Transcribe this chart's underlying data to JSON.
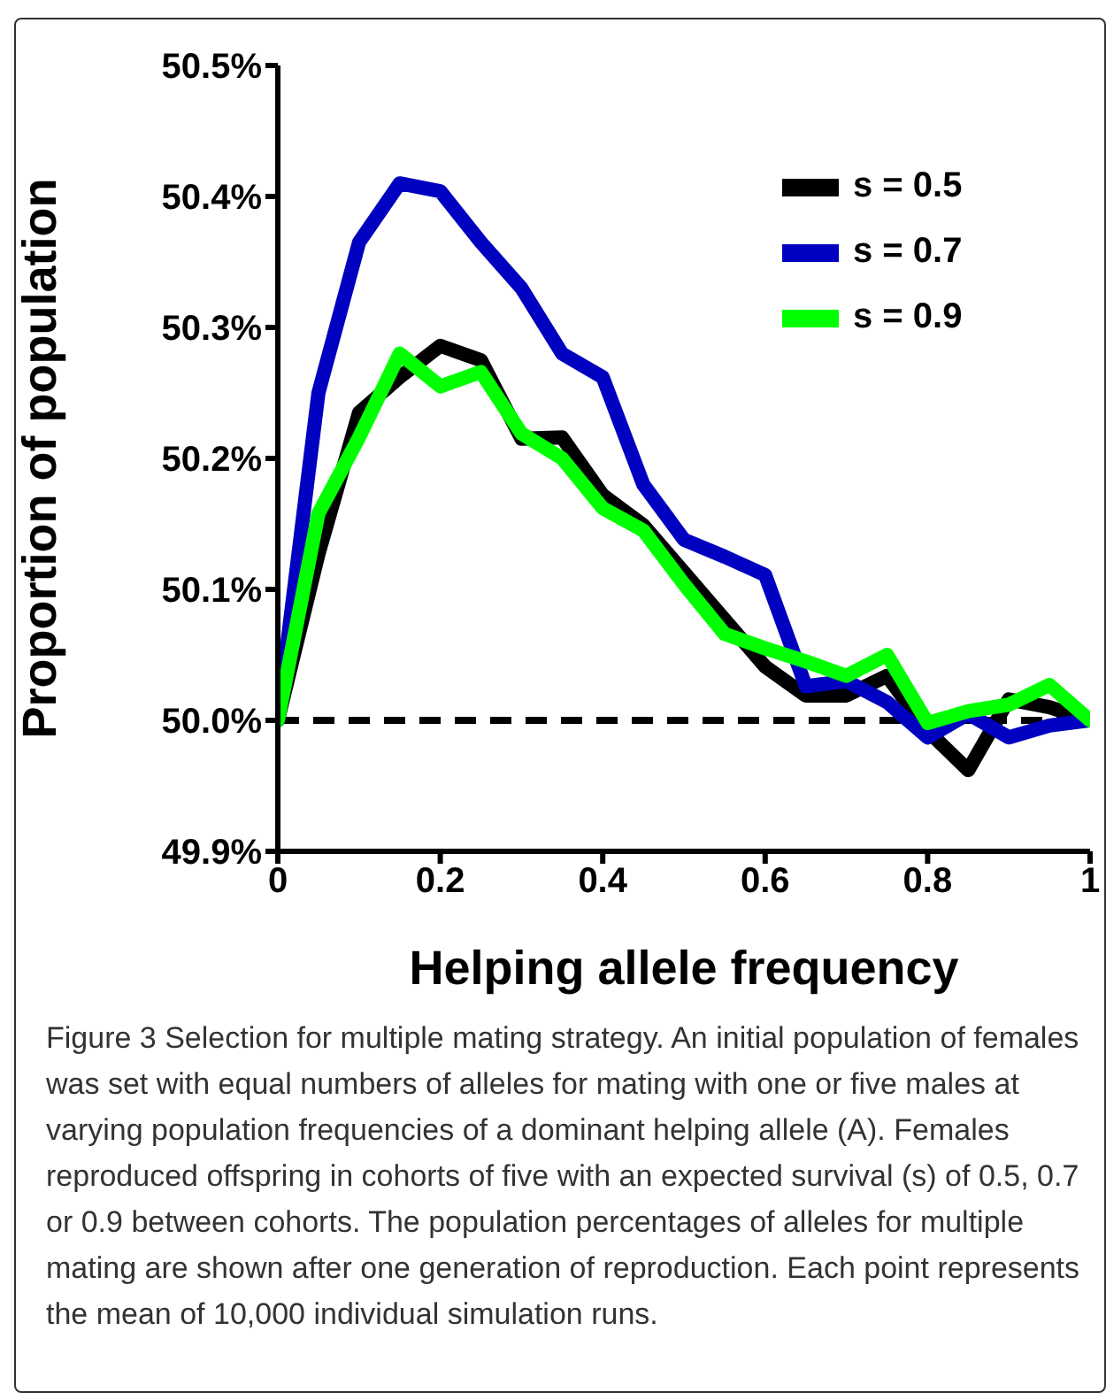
{
  "chart_data": {
    "type": "line",
    "xlabel": "Helping allele frequency",
    "ylabel": "Proportion of population",
    "x": [
      0,
      0.05,
      0.1,
      0.15,
      0.2,
      0.25,
      0.3,
      0.35,
      0.4,
      0.45,
      0.5,
      0.55,
      0.6,
      0.65,
      0.7,
      0.75,
      0.8,
      0.85,
      0.9,
      0.95,
      1
    ],
    "series": [
      {
        "name": "s = 0.5",
        "color": "#000000",
        "values": [
          50.0,
          50.127,
          50.235,
          50.262,
          50.286,
          50.275,
          50.215,
          50.216,
          50.172,
          50.149,
          50.113,
          50.077,
          50.041,
          50.019,
          50.019,
          50.034,
          49.992,
          49.962,
          50.016,
          50.01,
          50.0
        ]
      },
      {
        "name": "s = 0.7",
        "color": "#0000c0",
        "values": [
          50.0,
          50.25,
          50.365,
          50.41,
          50.404,
          50.365,
          50.33,
          50.28,
          50.262,
          50.18,
          50.138,
          50.125,
          50.111,
          50.026,
          50.03,
          50.014,
          49.987,
          50.005,
          49.987,
          49.996,
          50.0
        ]
      },
      {
        "name": "s = 0.9",
        "color": "#00ff00",
        "values": [
          50.0,
          50.158,
          50.216,
          50.28,
          50.255,
          50.266,
          50.219,
          50.2,
          50.162,
          50.145,
          50.104,
          50.066,
          50.055,
          50.045,
          50.034,
          50.05,
          49.998,
          50.007,
          50.012,
          50.027,
          50.0
        ]
      }
    ],
    "xlim": [
      0,
      1
    ],
    "xticks": [
      0,
      0.2,
      0.4,
      0.6,
      0.8,
      1
    ],
    "ylim": [
      49.9,
      50.5
    ],
    "yticks": [
      {
        "value": 49.9,
        "label": "49.9%"
      },
      {
        "value": 50.0,
        "label": "50.0%"
      },
      {
        "value": 50.1,
        "label": "50.1%"
      },
      {
        "value": 50.2,
        "label": "50.2%"
      },
      {
        "value": 50.3,
        "label": "50.3%"
      },
      {
        "value": 50.4,
        "label": "50.4%"
      },
      {
        "value": 50.5,
        "label": "50.5%"
      }
    ],
    "ref_lines": [
      {
        "axis": "y",
        "value": 50.0,
        "color": "#000000",
        "line_style": "dashed"
      }
    ],
    "legend": "top right",
    "annotations": [
      "Figure 3 Selection for multiple mating strategy. An initial population of females was set with equal numbers of alleles for mating with one or five males at varying population frequencies of a dominant helping allele (A). Females reproduced offspring in cohorts of five with an expected survival (s) of 0.5, 0.7 or 0.9 between cohorts. The population percentages of alleles for multiple mating are shown after one generation of reproduction. Each point represents the mean of 10,000 individual simulation runs."
    ]
  }
}
